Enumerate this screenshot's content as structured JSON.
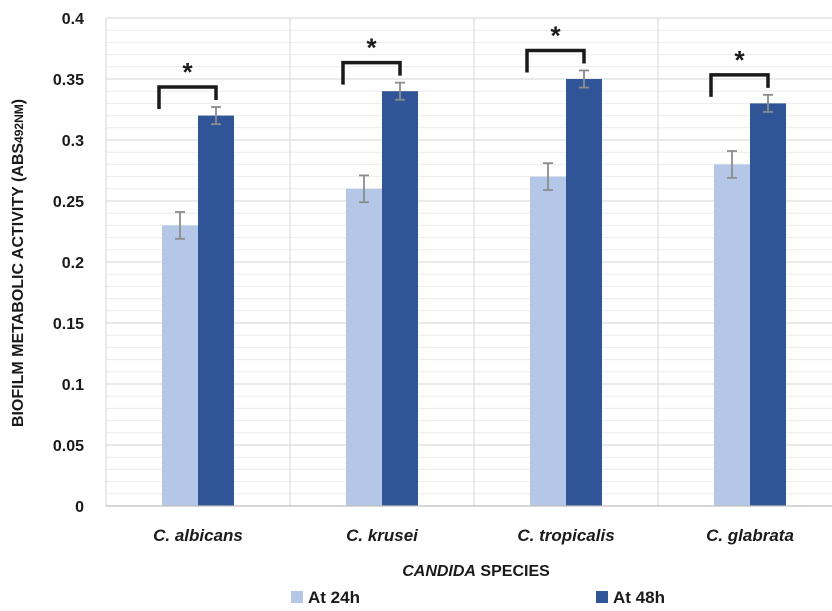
{
  "chart_data": {
    "type": "bar",
    "categories": [
      "C. albicans",
      "C. krusei",
      "C. tropicalis",
      "C. glabrata"
    ],
    "series": [
      {
        "name": "At 24h",
        "values": [
          0.23,
          0.26,
          0.27,
          0.28
        ],
        "errors": [
          0.011,
          0.011,
          0.011,
          0.011
        ],
        "color": "#b4c7e7"
      },
      {
        "name": "At 48h",
        "values": [
          0.32,
          0.34,
          0.35,
          0.33
        ],
        "errors": [
          0.007,
          0.007,
          0.007,
          0.007
        ],
        "color": "#2f5597"
      }
    ],
    "significance": [
      "*",
      "*",
      "*",
      "*"
    ],
    "xlabel_italic": "CANDIDA",
    "xlabel_rest": " SPECIES",
    "ylabel_main": "BIOFILM METABOLIC ACTIVITY (ABS",
    "ylabel_sub": "492NM",
    "ylabel_end": ")",
    "ylim": [
      0,
      0.4
    ],
    "yticks": [
      "0",
      "0.05",
      "0.1",
      "0.15",
      "0.2",
      "0.25",
      "0.3",
      "0.35",
      "0.4"
    ],
    "grid": true,
    "legend_position": "bottom",
    "error_bar_color": "#8c8c8c"
  }
}
